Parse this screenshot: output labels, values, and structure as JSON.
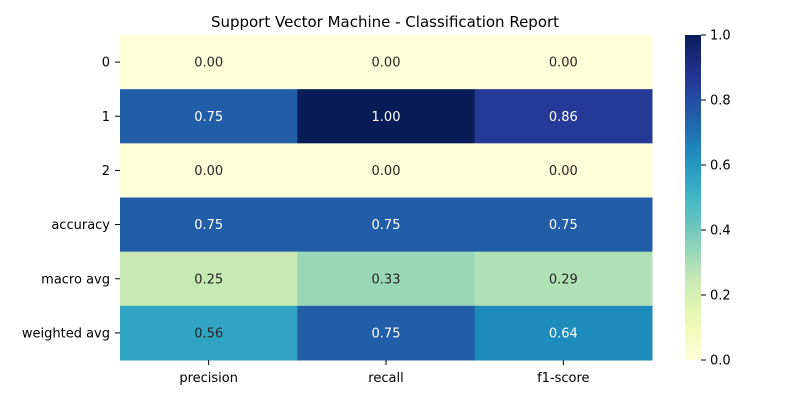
{
  "chart_data": {
    "type": "heatmap",
    "title": "Support Vector Machine - Classification Report",
    "xlabel": "",
    "ylabel": "",
    "columns": [
      "precision",
      "recall",
      "f1-score"
    ],
    "rows": [
      "0",
      "1",
      "2",
      "accuracy",
      "macro avg",
      "weighted avg"
    ],
    "values": [
      [
        0.0,
        0.0,
        0.0
      ],
      [
        0.75,
        1.0,
        0.86
      ],
      [
        0.0,
        0.0,
        0.0
      ],
      [
        0.75,
        0.75,
        0.75
      ],
      [
        0.25,
        0.33,
        0.29
      ],
      [
        0.56,
        0.75,
        0.64
      ]
    ],
    "value_format": "0.00",
    "colormap": "YlGnBu",
    "vmin": 0.0,
    "vmax": 1.0,
    "colorbar_ticks": [
      "0.0",
      "0.2",
      "0.4",
      "0.6",
      "0.8",
      "1.0"
    ],
    "grid": false
  }
}
